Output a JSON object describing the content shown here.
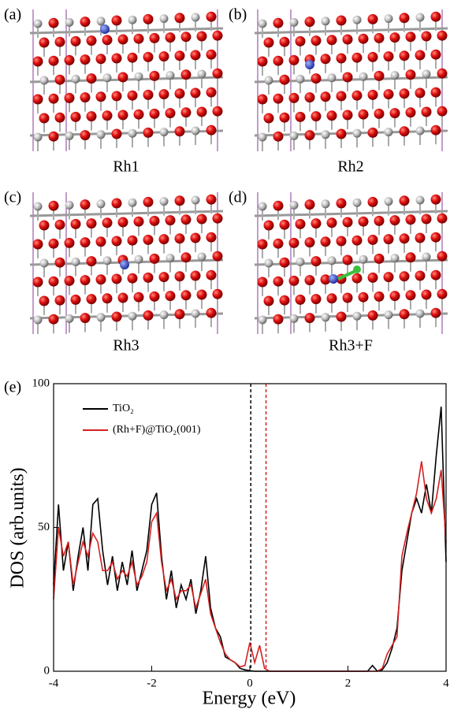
{
  "panels": [
    {
      "tag": "(a)",
      "label": "Rh1"
    },
    {
      "tag": "(b)",
      "label": "Rh2"
    },
    {
      "tag": "(c)",
      "label": "Rh3"
    },
    {
      "tag": "(d)",
      "label": "Rh3+F"
    }
  ],
  "chart_data": {
    "type": "line",
    "panel_tag": "(e)",
    "x_label": "Energy (eV)",
    "y_label": "DOS (arb.units)",
    "x": [
      -4.0,
      -3.9,
      -3.8,
      -3.7,
      -3.6,
      -3.5,
      -3.4,
      -3.3,
      -3.2,
      -3.1,
      -3.0,
      -2.9,
      -2.8,
      -2.7,
      -2.6,
      -2.5,
      -2.4,
      -2.3,
      -2.2,
      -2.1,
      -2.0,
      -1.9,
      -1.8,
      -1.7,
      -1.6,
      -1.5,
      -1.4,
      -1.3,
      -1.2,
      -1.1,
      -1.0,
      -0.9,
      -0.8,
      -0.7,
      -0.6,
      -0.5,
      -0.4,
      -0.3,
      -0.2,
      -0.1,
      0.0,
      0.1,
      0.2,
      0.3,
      0.4,
      0.5,
      0.6,
      0.7,
      0.8,
      0.9,
      1.0,
      1.1,
      1.2,
      1.3,
      1.4,
      1.5,
      1.6,
      1.7,
      1.8,
      1.9,
      2.0,
      2.1,
      2.2,
      2.3,
      2.4,
      2.5,
      2.6,
      2.7,
      2.8,
      2.9,
      3.0,
      3.1,
      3.2,
      3.3,
      3.4,
      3.5,
      3.6,
      3.7,
      3.8,
      3.9,
      4.0
    ],
    "series": [
      {
        "name": "TiO₂",
        "color": "#000000",
        "values": [
          30,
          58,
          35,
          45,
          28,
          40,
          50,
          35,
          58,
          60,
          42,
          30,
          40,
          28,
          38,
          30,
          42,
          28,
          35,
          42,
          58,
          62,
          40,
          25,
          35,
          22,
          30,
          25,
          32,
          20,
          28,
          40,
          22,
          15,
          12,
          5,
          4,
          3,
          1,
          0.5,
          0.2,
          0,
          0,
          0,
          0,
          0,
          0,
          0,
          0,
          0,
          0,
          0,
          0,
          0,
          0,
          0,
          0,
          0,
          0,
          0,
          0,
          0,
          0,
          0,
          0,
          2,
          0,
          0.5,
          3,
          8,
          15,
          35,
          45,
          55,
          60,
          55,
          65,
          55,
          75,
          92,
          38
        ]
      },
      {
        "name": "(Rh+F)@TiO₂(001)",
        "color": "#d42020",
        "values": [
          25,
          50,
          40,
          45,
          30,
          38,
          45,
          40,
          48,
          45,
          35,
          35,
          38,
          32,
          35,
          33,
          38,
          30,
          33,
          38,
          52,
          55,
          38,
          28,
          32,
          25,
          28,
          28,
          30,
          22,
          27,
          32,
          20,
          15,
          10,
          6,
          4,
          3,
          1.5,
          2,
          10,
          3,
          9,
          1,
          0,
          0,
          0,
          0,
          0,
          0,
          0,
          0,
          0,
          0,
          0,
          0,
          0,
          0,
          0,
          0,
          0,
          0,
          0,
          0,
          0,
          0,
          0,
          1,
          6,
          9,
          12,
          40,
          48,
          55,
          62,
          73,
          60,
          55,
          60,
          70,
          45
        ]
      }
    ],
    "reference_lines": [
      {
        "x": 0.02,
        "color": "#000000"
      },
      {
        "x": 0.33,
        "color": "#d42020"
      }
    ],
    "xlim": [
      -4,
      4
    ],
    "xticks": [
      -4,
      -2,
      0,
      2,
      4
    ],
    "ylim": [
      0,
      100
    ],
    "yticks": [
      0,
      50,
      100
    ],
    "legend": "upper-left"
  }
}
